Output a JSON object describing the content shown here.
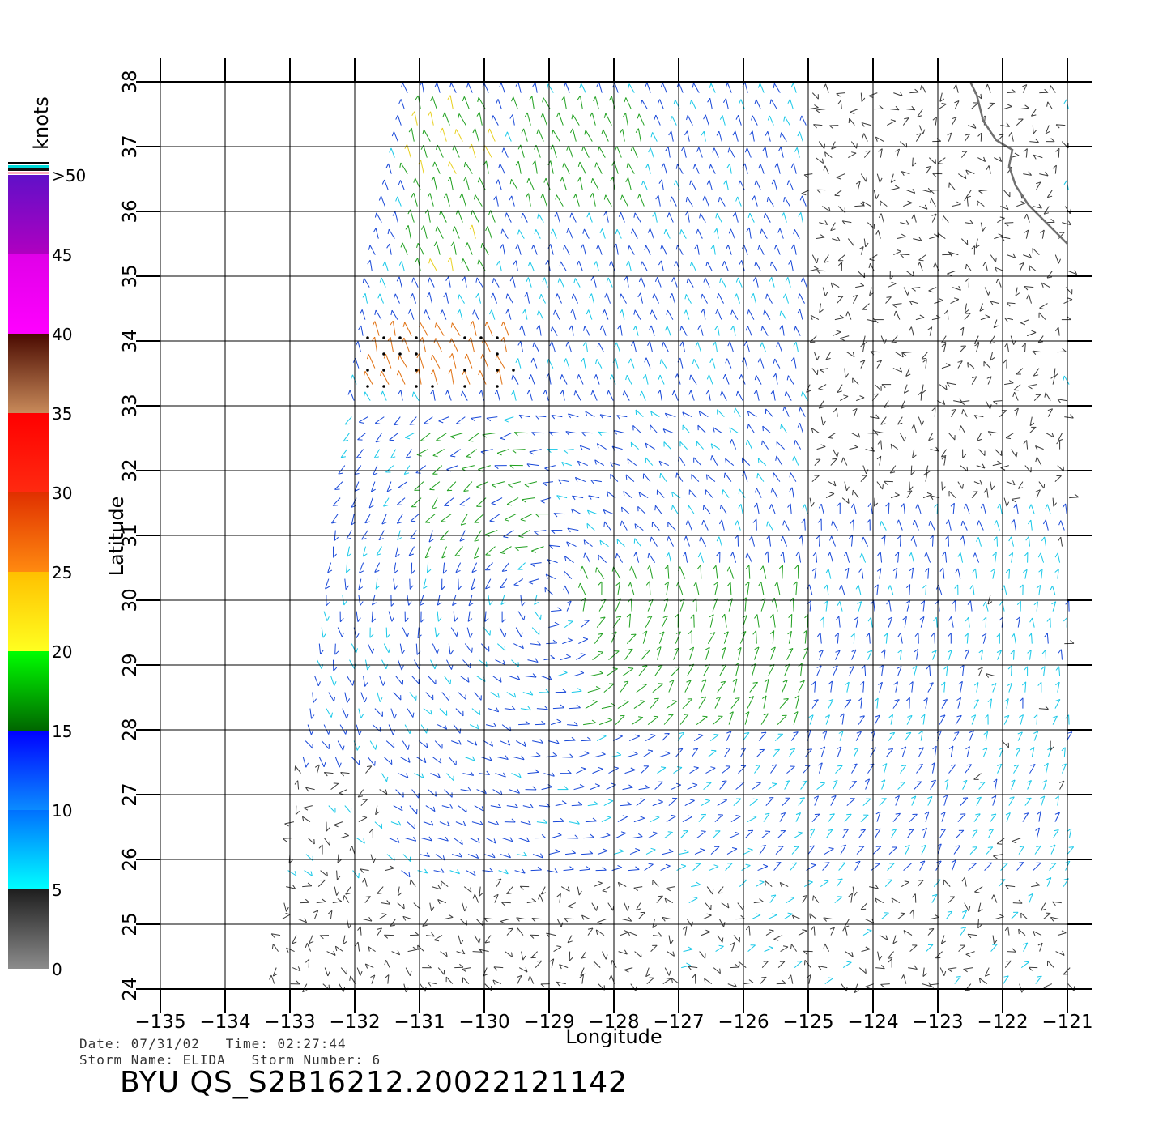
{
  "chart_data": {
    "type": "wind-vector-map",
    "xlabel": "Longitude",
    "ylabel": "Latitude",
    "xlim": [
      -135,
      -121
    ],
    "ylim": [
      24,
      38
    ],
    "x_ticks": [
      -135,
      -134,
      -133,
      -132,
      -131,
      -130,
      -129,
      -128,
      -127,
      -126,
      -125,
      -124,
      -123,
      -122,
      -121
    ],
    "y_ticks": [
      24,
      25,
      26,
      27,
      28,
      29,
      30,
      31,
      32,
      33,
      34,
      35,
      36,
      37,
      38
    ],
    "x_tick_labels": [
      "−135",
      "−134",
      "−133",
      "−132",
      "−131",
      "−130",
      "−129",
      "−128",
      "−127",
      "−126",
      "−125",
      "−124",
      "−123",
      "−122",
      "−121"
    ],
    "y_tick_labels": [
      "24",
      "25",
      "26",
      "27",
      "28",
      "29",
      "30",
      "31",
      "32",
      "33",
      "34",
      "35",
      "36",
      "37",
      "38"
    ],
    "grid": true,
    "colorbar": {
      "title": "knots",
      "labels": [
        "0",
        "5",
        "10",
        "15",
        "20",
        "25",
        "30",
        "35",
        "40",
        "45",
        ">50"
      ],
      "bands": [
        {
          "from": 0,
          "to": 5,
          "colors": [
            "#8c8c8c",
            "#1e1e1e"
          ]
        },
        {
          "from": 5,
          "to": 10,
          "colors": [
            "#00ffff",
            "#0070ff"
          ]
        },
        {
          "from": 10,
          "to": 15,
          "colors": [
            "#0a8cff",
            "#0000ff"
          ]
        },
        {
          "from": 15,
          "to": 20,
          "colors": [
            "#006600",
            "#00ff00"
          ]
        },
        {
          "from": 20,
          "to": 25,
          "colors": [
            "#ffff20",
            "#ffc000"
          ]
        },
        {
          "from": 25,
          "to": 30,
          "colors": [
            "#ff8a10",
            "#e03000"
          ]
        },
        {
          "from": 30,
          "to": 35,
          "colors": [
            "#ff2a10",
            "#ff0000"
          ]
        },
        {
          "from": 35,
          "to": 40,
          "colors": [
            "#c88a5a",
            "#4a0a00"
          ]
        },
        {
          "from": 40,
          "to": 45,
          "colors": [
            "#ff00ff",
            "#e000e8"
          ]
        },
        {
          "from": 45,
          "to": 50,
          "colors": [
            "#b000c0",
            "#6010c8"
          ]
        }
      ],
      "stripe_colors": [
        "#ffb0c0",
        "#111111",
        "#00d8d8",
        "#000000"
      ]
    },
    "swath": {
      "west_edge": [
        [
          -133.3,
          24.0
        ],
        [
          -133.0,
          26.5
        ],
        [
          -132.5,
          30.0
        ],
        [
          -132.0,
          33.5
        ],
        [
          -131.8,
          35.0
        ],
        [
          -131.5,
          36.5
        ],
        [
          -131.2,
          38.0
        ]
      ],
      "east_edge_lon": -120.95
    },
    "wind_regions": [
      {
        "name": "jet-north",
        "lon": [
          -129.5,
          -127.5
        ],
        "lat": [
          36.0,
          37.8
        ],
        "speed_knots": 17
      },
      {
        "name": "jet-northwest",
        "lon": [
          -131.2,
          -129.8
        ],
        "lat": [
          35.0,
          37.6
        ],
        "speed_knots": 19
      },
      {
        "name": "band-central",
        "lon": [
          -131.0,
          -129.0
        ],
        "lat": [
          30.6,
          32.8
        ],
        "speed_knots": 16
      },
      {
        "name": "band-southeast",
        "lon": [
          -128.5,
          -125.0
        ],
        "lat": [
          28.0,
          30.5
        ],
        "speed_knots": 18
      },
      {
        "name": "rain-flagged",
        "lon": [
          -131.8,
          -129.5
        ],
        "lat": [
          33.3,
          34.2
        ],
        "speed_knots": 27
      },
      {
        "name": "calm-south",
        "lon": [
          -133.5,
          -127.0
        ],
        "lat": [
          24.0,
          25.8
        ],
        "speed_knots": 3
      },
      {
        "name": "calm-east",
        "lon": [
          -125.0,
          -121.0
        ],
        "lat": [
          31.5,
          38.0
        ],
        "speed_knots": 3
      }
    ],
    "coastline": [
      [
        -121.0,
        35.5
      ],
      [
        -121.3,
        35.8
      ],
      [
        -121.6,
        36.1
      ],
      [
        -121.8,
        36.4
      ],
      [
        -121.9,
        36.7
      ],
      [
        -121.85,
        36.95
      ],
      [
        -122.1,
        37.1
      ],
      [
        -122.3,
        37.4
      ],
      [
        -122.4,
        37.8
      ],
      [
        -122.5,
        38.0
      ]
    ]
  },
  "footer": {
    "line1": "Date: 07/31/02   Time: 02:27:44",
    "line2": "Storm Name: ELIDA   Storm Number: 6",
    "title": "BYU  QS_S2B16212.20022121142"
  },
  "colors": {
    "grid": "#000000",
    "coast": "#707070"
  }
}
